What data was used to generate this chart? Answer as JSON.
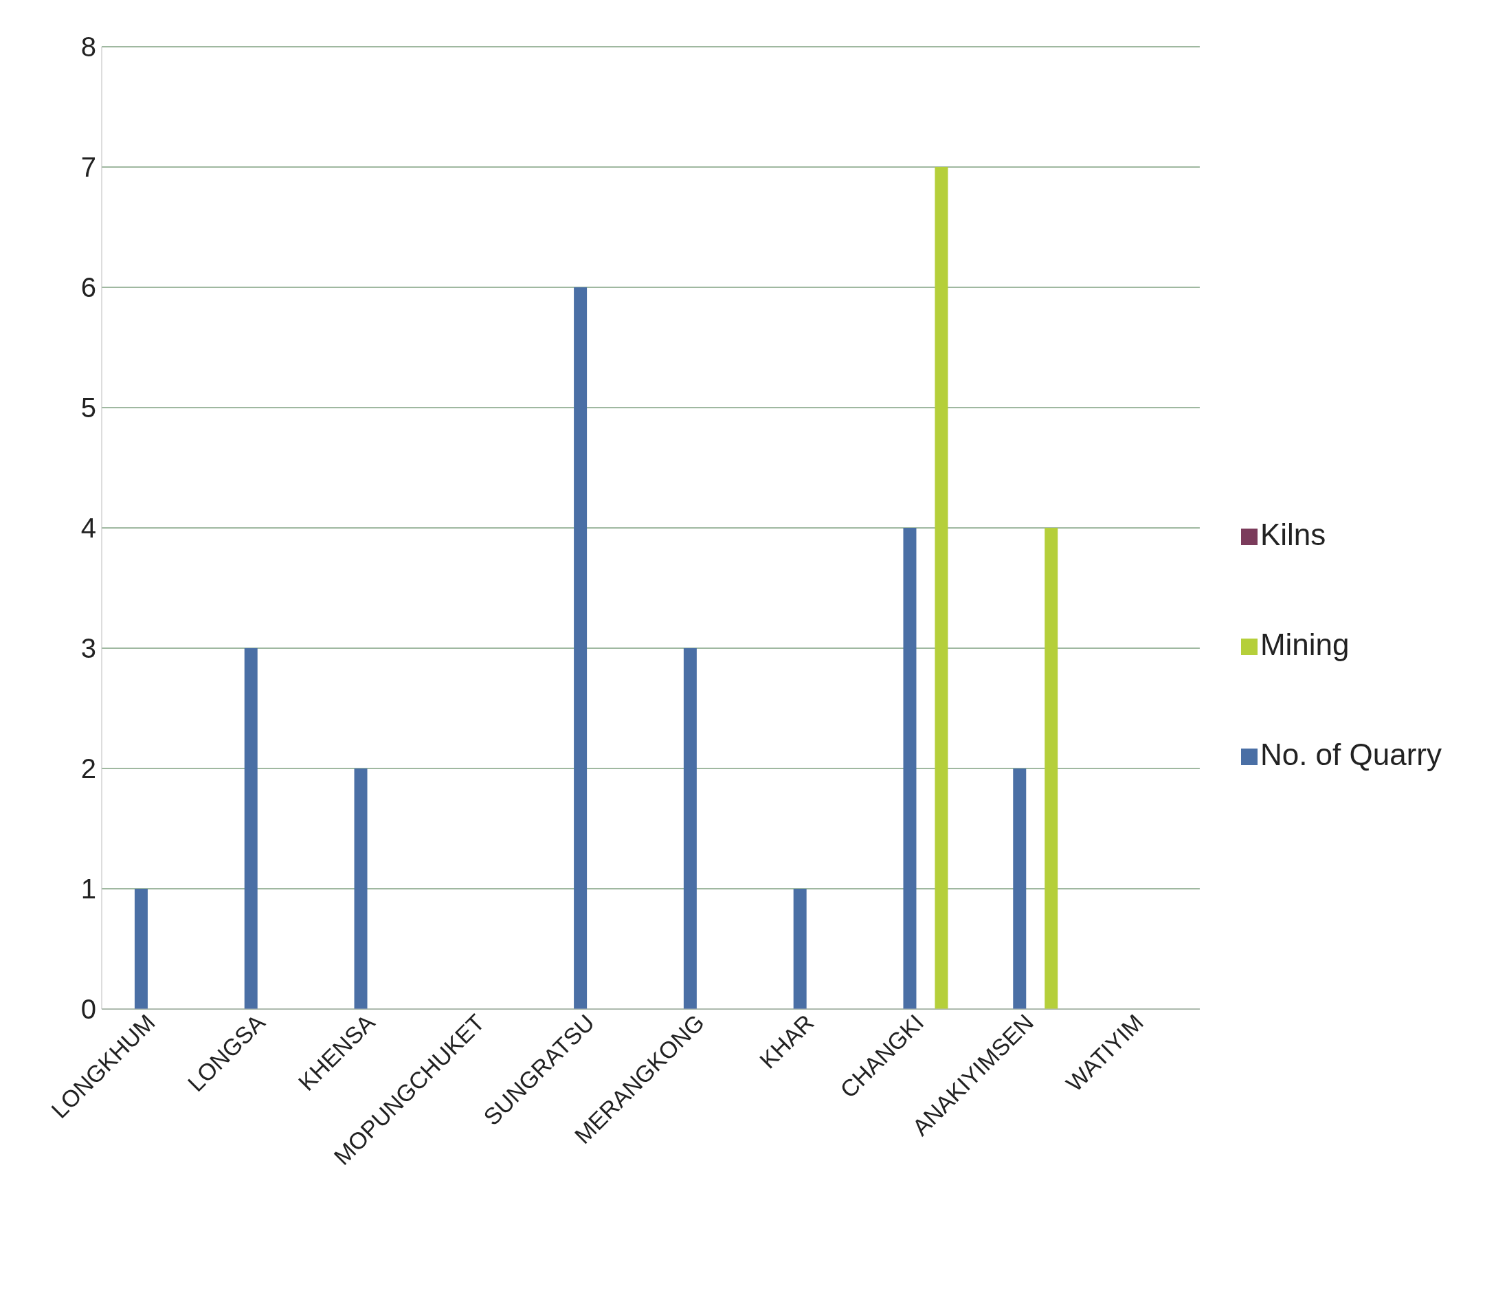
{
  "chart_data": {
    "type": "bar",
    "categories": [
      "LONGKHUM",
      "LONGSA",
      "KHENSA",
      "MOPUNGCHUKET",
      "SUNGRATSU",
      "MERANGKONG",
      "KHAR",
      "CHANGKI",
      "ANAKIYIMSEN",
      "WATIYIM"
    ],
    "series": [
      {
        "name": "No. of Quarry",
        "color": "#4a6fa5",
        "values": [
          1,
          3,
          2,
          0,
          6,
          3,
          1,
          4,
          2,
          0
        ]
      },
      {
        "name": "Kilns",
        "color": "#7b3b5b",
        "values": [
          0,
          0,
          0,
          0,
          0,
          0,
          0,
          0,
          0,
          0
        ]
      },
      {
        "name": "Mining",
        "color": "#b5cf3a",
        "values": [
          0,
          0,
          0,
          0,
          0,
          0,
          0,
          7,
          4,
          0
        ]
      }
    ],
    "ylim": [
      0,
      8
    ],
    "yticks": [
      0,
      1,
      2,
      3,
      4,
      5,
      6,
      7,
      8
    ],
    "grid": "y",
    "legend": "right"
  }
}
